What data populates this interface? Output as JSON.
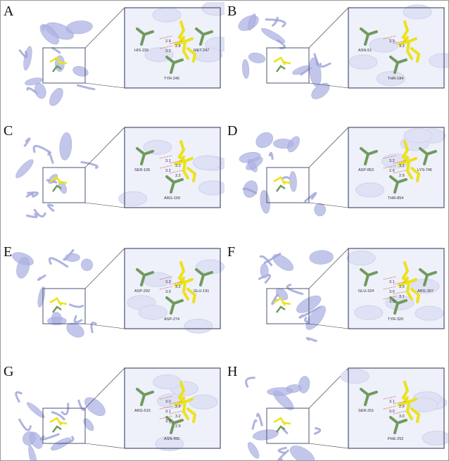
{
  "colors": {
    "protein": "#aeb3e4",
    "residue": "#6f9a5c",
    "ligand": "#ece21a",
    "hbond": "#d05050",
    "frame": "#4a5470"
  },
  "panels": [
    {
      "letter": "A",
      "residues": [
        "HIS-226",
        "TYR-245",
        "MET-247"
      ],
      "distances": [
        "2.9",
        "2.8",
        "3.2"
      ]
    },
    {
      "letter": "B",
      "residues": [
        "ASN-51",
        "THR-184"
      ],
      "distances": [
        "3.3",
        "3.3"
      ]
    },
    {
      "letter": "C",
      "residues": [
        "SER-105",
        "ARG-109"
      ],
      "distances": [
        "3.1",
        "3.2",
        "3.2",
        "3.2"
      ]
    },
    {
      "letter": "D",
      "residues": [
        "ASP-853",
        "THR-854",
        "LYS-745"
      ],
      "distances": [
        "3.2",
        "3.2",
        "2.9",
        "2.9"
      ]
    },
    {
      "letter": "E",
      "residues": [
        "ASP-292",
        "ASP-274",
        "GLU-191"
      ],
      "distances": [
        "3.3",
        "3.2",
        "3.0"
      ]
    },
    {
      "letter": "F",
      "residues": [
        "GLU-324",
        "TYR-320",
        "ARG-397"
      ],
      "distances": [
        "3.1",
        "3.5",
        "3.0",
        "3.1",
        "3.3"
      ]
    },
    {
      "letter": "G",
      "residues": [
        "ARG-515",
        "ASN-455"
      ],
      "distances": [
        "3.0",
        "2.9",
        "3.1",
        "3.2",
        "3.2",
        "2.9"
      ]
    },
    {
      "letter": "H",
      "residues": [
        "SER-251",
        "PHE-252"
      ],
      "distances": [
        "3.1",
        "2.9",
        "3.0",
        "3.0"
      ]
    }
  ]
}
